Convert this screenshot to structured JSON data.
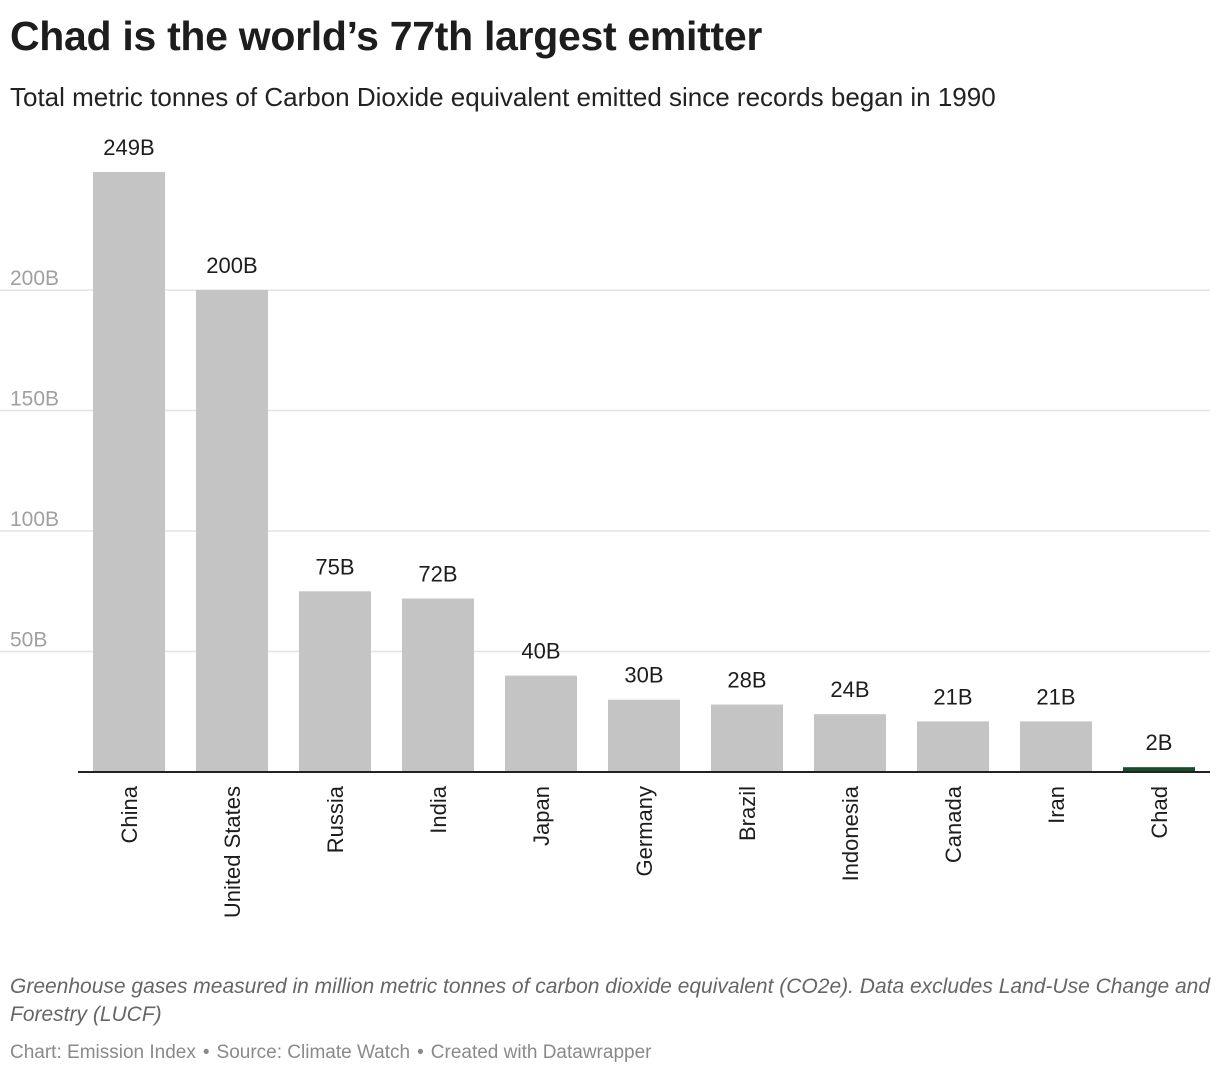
{
  "title": "Chad is the world’s 77th largest emitter",
  "subtitle": "Total metric tonnes of Carbon Dioxide equivalent emitted since records began in 1990",
  "notes": "Greenhouse gases measured in million metric tonnes of carbon dioxide equivalent (CO2e). Data excludes Land-Use Change and Forestry (LUCF)",
  "byline": {
    "chart": "Chart: Emission Index",
    "source": "Source: Climate Watch",
    "created": "Created with Datawrapper"
  },
  "colors": {
    "bar": "#c4c4c4",
    "highlight": "#184d2a",
    "grid": "#e3e3e3",
    "baseline": "#222222",
    "axis_text": "#a0a0a0",
    "label_text": "#1d1d1d"
  },
  "chart_data": {
    "type": "bar",
    "categories": [
      "China",
      "United States",
      "Russia",
      "India",
      "Japan",
      "Germany",
      "Brazil",
      "Indonesia",
      "Canada",
      "Iran",
      "Chad"
    ],
    "values": [
      249,
      200,
      75,
      72,
      40,
      30,
      28,
      24,
      21,
      21,
      2
    ],
    "value_labels": [
      "249B",
      "200B",
      "75B",
      "72B",
      "40B",
      "30B",
      "28B",
      "24B",
      "21B",
      "21B",
      "2B"
    ],
    "highlight": "Chad",
    "unit": "B",
    "yticks": [
      50,
      100,
      150,
      200
    ],
    "ytick_labels": [
      "50B",
      "100B",
      "150B",
      "200B"
    ],
    "ylim": [
      0,
      249
    ],
    "grid": true,
    "legend": "none",
    "xlabel": "",
    "ylabel": ""
  }
}
